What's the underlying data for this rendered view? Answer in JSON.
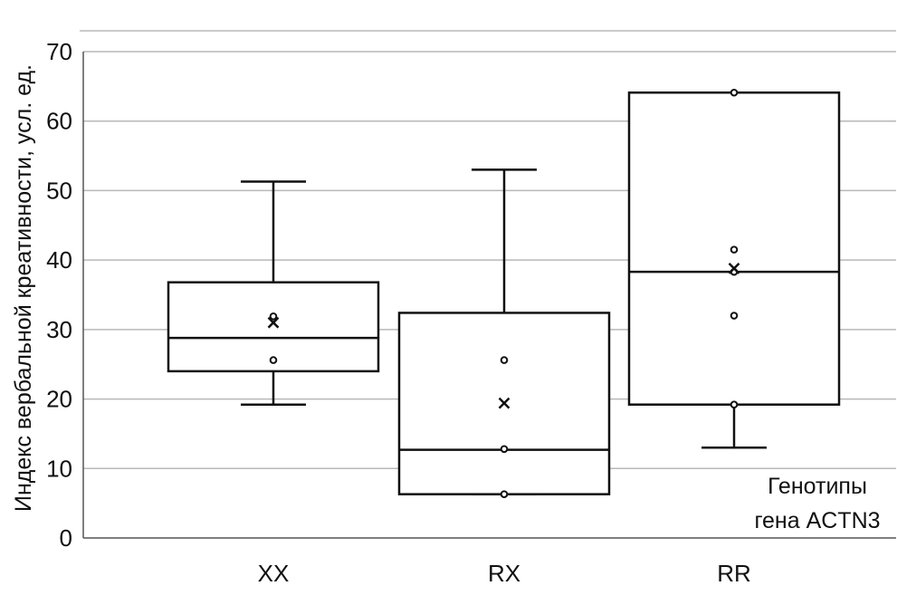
{
  "chart_data": {
    "type": "box",
    "ylabel": "Индекс вербальной креативности, усл. ед.",
    "xlabel": "",
    "ylim": [
      0,
      70
    ],
    "yticks": [
      0,
      10,
      20,
      30,
      40,
      50,
      60,
      70
    ],
    "grid": true,
    "annotation": [
      "Генотипы",
      "гена ACTN3"
    ],
    "categories": [
      "XX",
      "RX",
      "RR"
    ],
    "boxes": [
      {
        "category": "XX",
        "min": 19.2,
        "q1": 24,
        "median": 28.8,
        "q3": 36.8,
        "max": 51.3,
        "mean": 31,
        "points": [
          31.9,
          25.6
        ]
      },
      {
        "category": "RX",
        "min": 6.3,
        "q1": 6.3,
        "median": 12.7,
        "q3": 32.4,
        "max": 53,
        "mean": 19.4,
        "points": [
          25.6,
          12.8,
          6.3
        ]
      },
      {
        "category": "RR",
        "min": 13,
        "q1": 19.2,
        "median": 38.3,
        "q3": 64.1,
        "max": 64.1,
        "mean": 38.8,
        "points": [
          64.1,
          41.5,
          38.3,
          32,
          19.2
        ]
      }
    ]
  }
}
